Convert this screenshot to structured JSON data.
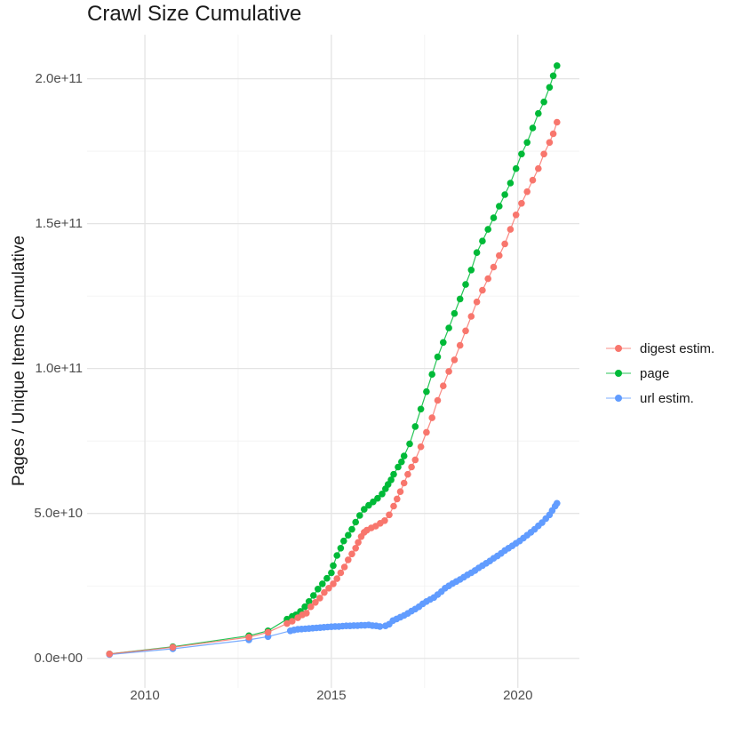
{
  "chart_data": {
    "type": "scatter",
    "title": "Crawl Size Cumulative",
    "xlabel": "",
    "ylabel": "Pages / Unique Items Cumulative",
    "xlim": [
      2008.45,
      2021.65
    ],
    "ylim": [
      -10200000000.0,
      215200000000.0
    ],
    "grid": "major+minor",
    "legend_position": "right",
    "x_ticks": {
      "values": [
        2010,
        2015,
        2020
      ],
      "labels": [
        "2010",
        "2015",
        "2020"
      ]
    },
    "x_minor_ticks": [
      2012.5,
      2017.5
    ],
    "y_ticks": {
      "values": [
        0,
        50000000000.0,
        100000000000.0,
        150000000000.0,
        200000000000.0
      ],
      "labels": [
        "0.0e+00",
        "5.0e+10",
        "1.0e+11",
        "1.5e+11",
        "2.0e+11"
      ]
    },
    "y_minor_ticks": [
      25000000000.0,
      75000000000.0,
      125000000000.0,
      175000000000.0
    ],
    "series": [
      {
        "name": "digest estim.",
        "color": "#F8766D",
        "points": [
          [
            2009.05,
            1500000000.0
          ],
          [
            2010.75,
            3800000000.0
          ],
          [
            2012.79,
            7300000000.0
          ],
          [
            2013.3,
            9000000000.0
          ],
          [
            2013.81,
            12000000000.0
          ],
          [
            2013.95,
            12800000000.0
          ],
          [
            2014.1,
            14000000000.0
          ],
          [
            2014.22,
            15000000000.0
          ],
          [
            2014.33,
            15600000000.0
          ],
          [
            2014.45,
            17800000000.0
          ],
          [
            2014.57,
            19300000000.0
          ],
          [
            2014.69,
            20800000000.0
          ],
          [
            2014.81,
            22700000000.0
          ],
          [
            2014.93,
            24200000000.0
          ],
          [
            2015.05,
            25700000000.0
          ],
          [
            2015.15,
            27500000000.0
          ],
          [
            2015.25,
            29500000000.0
          ],
          [
            2015.35,
            31500000000.0
          ],
          [
            2015.45,
            34000000000.0
          ],
          [
            2015.55,
            36000000000.0
          ],
          [
            2015.65,
            38000000000.0
          ],
          [
            2015.72,
            40000000000.0
          ],
          [
            2015.8,
            42000000000.0
          ],
          [
            2015.88,
            43500000000.0
          ],
          [
            2015.95,
            44200000000.0
          ],
          [
            2016.07,
            45000000000.0
          ],
          [
            2016.19,
            45600000000.0
          ],
          [
            2016.31,
            46600000000.0
          ],
          [
            2016.43,
            47500000000.0
          ],
          [
            2016.55,
            49500000000.0
          ],
          [
            2016.67,
            52500000000.0
          ],
          [
            2016.76,
            55000000000.0
          ],
          [
            2016.85,
            57500000000.0
          ],
          [
            2016.95,
            60500000000.0
          ],
          [
            2017.05,
            63500000000.0
          ],
          [
            2017.15,
            66000000000.0
          ],
          [
            2017.25,
            68500000000.0
          ],
          [
            2017.4,
            73000000000.0
          ],
          [
            2017.55,
            78000000000.0
          ],
          [
            2017.7,
            83000000000.0
          ],
          [
            2017.85,
            89000000000.0
          ],
          [
            2018.0,
            94000000000.0
          ],
          [
            2018.15,
            99000000000.0
          ],
          [
            2018.3,
            103000000000.0
          ],
          [
            2018.45,
            108000000000.0
          ],
          [
            2018.6,
            113000000000.0
          ],
          [
            2018.75,
            118000000000.0
          ],
          [
            2018.9,
            123000000000.0
          ],
          [
            2019.05,
            127000000000.0
          ],
          [
            2019.2,
            131000000000.0
          ],
          [
            2019.35,
            135000000000.0
          ],
          [
            2019.5,
            139000000000.0
          ],
          [
            2019.65,
            143000000000.0
          ],
          [
            2019.8,
            148000000000.0
          ],
          [
            2019.95,
            153000000000.0
          ],
          [
            2020.1,
            157000000000.0
          ],
          [
            2020.25,
            161000000000.0
          ],
          [
            2020.4,
            165000000000.0
          ],
          [
            2020.55,
            169000000000.0
          ],
          [
            2020.7,
            174000000000.0
          ],
          [
            2020.85,
            178000000000.0
          ],
          [
            2020.95,
            181000000000.0
          ],
          [
            2021.05,
            185000000000.0
          ]
        ]
      },
      {
        "name": "page",
        "color": "#00BA38",
        "points": [
          [
            2009.05,
            1500000000.0
          ],
          [
            2010.75,
            4000000000.0
          ],
          [
            2012.79,
            7800000000.0
          ],
          [
            2013.3,
            9500000000.0
          ],
          [
            2013.81,
            13500000000.0
          ],
          [
            2013.95,
            14500000000.0
          ],
          [
            2014.05,
            15000000000.0
          ],
          [
            2014.17,
            16200000000.0
          ],
          [
            2014.29,
            17800000000.0
          ],
          [
            2014.4,
            19600000000.0
          ],
          [
            2014.52,
            21700000000.0
          ],
          [
            2014.64,
            23900000000.0
          ],
          [
            2014.76,
            25700000000.0
          ],
          [
            2014.88,
            27600000000.0
          ],
          [
            2015.0,
            29500000000.0
          ],
          [
            2015.05,
            32000000000.0
          ],
          [
            2015.15,
            35500000000.0
          ],
          [
            2015.25,
            38000000000.0
          ],
          [
            2015.33,
            40500000000.0
          ],
          [
            2015.45,
            42500000000.0
          ],
          [
            2015.55,
            44500000000.0
          ],
          [
            2015.65,
            47000000000.0
          ],
          [
            2015.76,
            49300000000.0
          ],
          [
            2015.88,
            51400000000.0
          ],
          [
            2016.0,
            52800000000.0
          ],
          [
            2016.12,
            54000000000.0
          ],
          [
            2016.24,
            55200000000.0
          ],
          [
            2016.36,
            56700000000.0
          ],
          [
            2016.45,
            58500000000.0
          ],
          [
            2016.52,
            60000000000.0
          ],
          [
            2016.6,
            61600000000.0
          ],
          [
            2016.67,
            63500000000.0
          ],
          [
            2016.79,
            66000000000.0
          ],
          [
            2016.88,
            67800000000.0
          ],
          [
            2016.95,
            69800000000.0
          ],
          [
            2017.1,
            74000000000.0
          ],
          [
            2017.25,
            80000000000.0
          ],
          [
            2017.4,
            86000000000.0
          ],
          [
            2017.55,
            92000000000.0
          ],
          [
            2017.7,
            98000000000.0
          ],
          [
            2017.85,
            104000000000.0
          ],
          [
            2018.0,
            109000000000.0
          ],
          [
            2018.15,
            114000000000.0
          ],
          [
            2018.3,
            119000000000.0
          ],
          [
            2018.45,
            124000000000.0
          ],
          [
            2018.6,
            129000000000.0
          ],
          [
            2018.75,
            134000000000.0
          ],
          [
            2018.9,
            140000000000.0
          ],
          [
            2019.05,
            144000000000.0
          ],
          [
            2019.2,
            148000000000.0
          ],
          [
            2019.35,
            152000000000.0
          ],
          [
            2019.5,
            156000000000.0
          ],
          [
            2019.65,
            160000000000.0
          ],
          [
            2019.8,
            164000000000.0
          ],
          [
            2019.95,
            169000000000.0
          ],
          [
            2020.1,
            174000000000.0
          ],
          [
            2020.25,
            178000000000.0
          ],
          [
            2020.4,
            183000000000.0
          ],
          [
            2020.55,
            188000000000.0
          ],
          [
            2020.7,
            192000000000.0
          ],
          [
            2020.85,
            197000000000.0
          ],
          [
            2020.95,
            201000000000.0
          ],
          [
            2021.05,
            204500000000.0
          ]
        ]
      },
      {
        "name": "url estim.",
        "color": "#619CFF",
        "points": [
          [
            2009.05,
            1300000000.0
          ],
          [
            2010.75,
            3300000000.0
          ],
          [
            2012.79,
            6400000000.0
          ],
          [
            2013.3,
            7500000000.0
          ],
          [
            2013.9,
            9500000000.0
          ],
          [
            2014.0,
            9800000000.0
          ],
          [
            2014.1,
            10000000000.0
          ],
          [
            2014.2,
            10100000000.0
          ],
          [
            2014.3,
            10200000000.0
          ],
          [
            2014.4,
            10300000000.0
          ],
          [
            2014.5,
            10400000000.0
          ],
          [
            2014.6,
            10500000000.0
          ],
          [
            2014.7,
            10600000000.0
          ],
          [
            2014.8,
            10700000000.0
          ],
          [
            2014.9,
            10800000000.0
          ],
          [
            2015.0,
            10900000000.0
          ],
          [
            2015.1,
            11000000000.0
          ],
          [
            2015.2,
            11000000000.0
          ],
          [
            2015.3,
            11100000000.0
          ],
          [
            2015.4,
            11200000000.0
          ],
          [
            2015.5,
            11200000000.0
          ],
          [
            2015.6,
            11300000000.0
          ],
          [
            2015.7,
            11300000000.0
          ],
          [
            2015.8,
            11400000000.0
          ],
          [
            2015.9,
            11400000000.0
          ],
          [
            2016.0,
            11500000000.0
          ],
          [
            2016.1,
            11300000000.0
          ],
          [
            2016.2,
            11200000000.0
          ],
          [
            2016.3,
            11000000000.0
          ],
          [
            2016.45,
            11200000000.0
          ],
          [
            2016.55,
            11800000000.0
          ],
          [
            2016.65,
            13000000000.0
          ],
          [
            2016.75,
            13600000000.0
          ],
          [
            2016.85,
            14200000000.0
          ],
          [
            2016.95,
            14800000000.0
          ],
          [
            2017.05,
            15500000000.0
          ],
          [
            2017.15,
            16300000000.0
          ],
          [
            2017.25,
            17000000000.0
          ],
          [
            2017.35,
            17800000000.0
          ],
          [
            2017.45,
            18800000000.0
          ],
          [
            2017.55,
            19600000000.0
          ],
          [
            2017.65,
            20300000000.0
          ],
          [
            2017.75,
            21000000000.0
          ],
          [
            2017.85,
            22000000000.0
          ],
          [
            2017.95,
            23000000000.0
          ],
          [
            2018.05,
            24200000000.0
          ],
          [
            2018.15,
            25000000000.0
          ],
          [
            2018.25,
            25800000000.0
          ],
          [
            2018.35,
            26500000000.0
          ],
          [
            2018.45,
            27200000000.0
          ],
          [
            2018.55,
            28000000000.0
          ],
          [
            2018.65,
            28800000000.0
          ],
          [
            2018.75,
            29500000000.0
          ],
          [
            2018.85,
            30300000000.0
          ],
          [
            2018.95,
            31200000000.0
          ],
          [
            2019.05,
            32000000000.0
          ],
          [
            2019.15,
            32800000000.0
          ],
          [
            2019.25,
            33600000000.0
          ],
          [
            2019.35,
            34500000000.0
          ],
          [
            2019.45,
            35300000000.0
          ],
          [
            2019.55,
            36200000000.0
          ],
          [
            2019.65,
            37200000000.0
          ],
          [
            2019.75,
            38000000000.0
          ],
          [
            2019.85,
            38800000000.0
          ],
          [
            2019.95,
            39700000000.0
          ],
          [
            2020.05,
            40500000000.0
          ],
          [
            2020.15,
            41500000000.0
          ],
          [
            2020.25,
            42500000000.0
          ],
          [
            2020.35,
            43500000000.0
          ],
          [
            2020.45,
            44500000000.0
          ],
          [
            2020.55,
            45700000000.0
          ],
          [
            2020.65,
            46800000000.0
          ],
          [
            2020.75,
            48200000000.0
          ],
          [
            2020.85,
            49500000000.0
          ],
          [
            2020.92,
            51000000000.0
          ],
          [
            2021.0,
            52500000000.0
          ],
          [
            2021.05,
            53500000000.0
          ]
        ]
      }
    ],
    "style": {
      "grid_major_color": "#E4E4E4",
      "grid_minor_color": "#F1F1F1",
      "tick_text_color": "#4d4d4d",
      "title_color": "#1a1a1a",
      "background": "#ffffff"
    }
  }
}
